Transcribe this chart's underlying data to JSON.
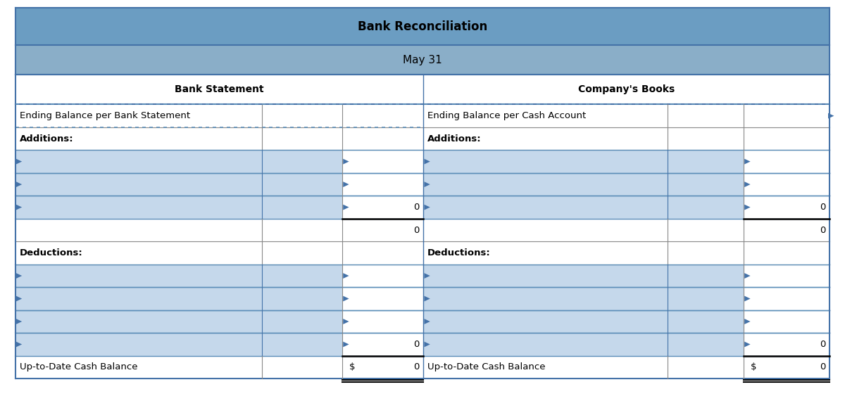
{
  "title": "Bank Reconciliation",
  "subtitle": "May 31",
  "header_bg": "#6B9DC2",
  "subheader_bg": "#8AAEC8",
  "section_header_left": "Bank Statement",
  "section_header_right": "Company's Books",
  "left_col1_label": "Ending Balance per Bank Statement",
  "right_col1_label": "Ending Balance per Cash Account",
  "additions_label": "Additions:",
  "deductions_label": "Deductions:",
  "uptodate_label": "Up-to-Date Cash Balance",
  "dollar_sign": "$",
  "zero_value": "0",
  "blue": "#4472A8",
  "blue_light": "#5B8DB8",
  "blue_fill": "#C5D8EB",
  "dark": "#000000",
  "gray_line": "#888888",
  "white": "#FFFFFF",
  "title_fontsize": 12,
  "subtitle_fontsize": 11,
  "body_fontsize": 9.5,
  "fig_width": 12.0,
  "fig_height": 5.6
}
